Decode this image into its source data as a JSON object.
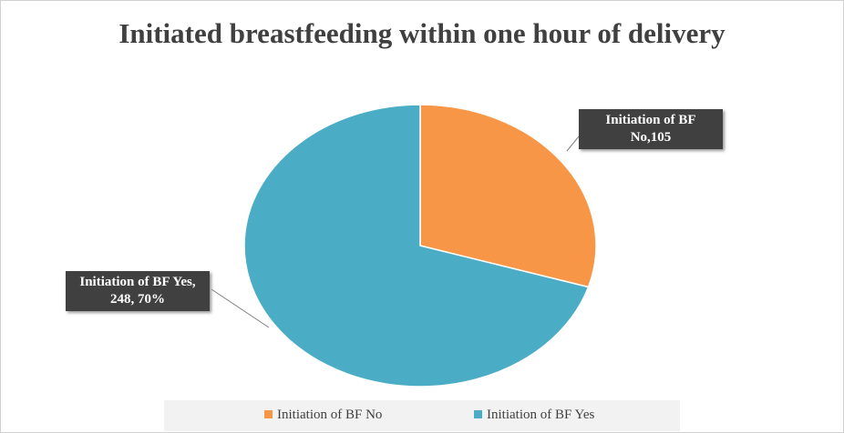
{
  "chart_data": {
    "type": "pie",
    "title": "Initiated breastfeeding within one hour of delivery",
    "categories": [
      "Initiation of BF No",
      "Initiation of BF Yes"
    ],
    "values": [
      105,
      248
    ],
    "value_labels": [
      "Initiation of BF No,105",
      "Initiation of BF Yes, 248, 70%"
    ],
    "colors": [
      "#f79646",
      "#4bacc6"
    ],
    "legend": "bottom"
  }
}
